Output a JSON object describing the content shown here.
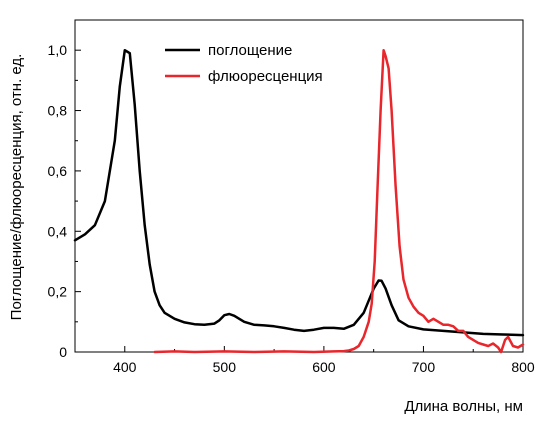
{
  "chart_data": {
    "type": "line",
    "xlabel": "Длина волны, нм",
    "ylabel": "Поглощение/флюоресценция, отн. ед.",
    "xlim": [
      350,
      800
    ],
    "ylim": [
      0,
      1.1
    ],
    "x_ticks": [
      400,
      500,
      600,
      700,
      800
    ],
    "y_ticks": [
      0,
      0.2,
      0.4,
      0.6,
      0.8,
      1.0
    ],
    "x_tick_labels": [
      "400",
      "500",
      "600",
      "700",
      "800"
    ],
    "y_tick_labels": [
      "0",
      "0,2",
      "0,4",
      "0,6",
      "0,8",
      "1,0"
    ],
    "grid": false,
    "legend_position": "top-center",
    "series": [
      {
        "name": "поглощение",
        "color": "#000000",
        "points": [
          [
            350,
            0.37
          ],
          [
            360,
            0.39
          ],
          [
            370,
            0.42
          ],
          [
            380,
            0.5
          ],
          [
            390,
            0.7
          ],
          [
            395,
            0.88
          ],
          [
            400,
            1.0
          ],
          [
            405,
            0.99
          ],
          [
            410,
            0.82
          ],
          [
            415,
            0.6
          ],
          [
            420,
            0.42
          ],
          [
            425,
            0.29
          ],
          [
            430,
            0.2
          ],
          [
            435,
            0.155
          ],
          [
            440,
            0.13
          ],
          [
            450,
            0.11
          ],
          [
            460,
            0.098
          ],
          [
            470,
            0.092
          ],
          [
            480,
            0.09
          ],
          [
            490,
            0.094
          ],
          [
            495,
            0.105
          ],
          [
            500,
            0.122
          ],
          [
            505,
            0.126
          ],
          [
            510,
            0.12
          ],
          [
            520,
            0.1
          ],
          [
            530,
            0.09
          ],
          [
            540,
            0.088
          ],
          [
            550,
            0.085
          ],
          [
            560,
            0.08
          ],
          [
            570,
            0.074
          ],
          [
            580,
            0.07
          ],
          [
            590,
            0.074
          ],
          [
            600,
            0.08
          ],
          [
            610,
            0.08
          ],
          [
            620,
            0.077
          ],
          [
            630,
            0.09
          ],
          [
            640,
            0.13
          ],
          [
            645,
            0.17
          ],
          [
            650,
            0.21
          ],
          [
            655,
            0.237
          ],
          [
            658,
            0.236
          ],
          [
            662,
            0.21
          ],
          [
            668,
            0.155
          ],
          [
            675,
            0.105
          ],
          [
            685,
            0.085
          ],
          [
            700,
            0.075
          ],
          [
            720,
            0.07
          ],
          [
            740,
            0.065
          ],
          [
            760,
            0.06
          ],
          [
            780,
            0.058
          ],
          [
            800,
            0.056
          ]
        ]
      },
      {
        "name": "флюоресценция",
        "color": "#e8262b",
        "points": [
          [
            430,
            0.0
          ],
          [
            450,
            0.002
          ],
          [
            470,
            0.0
          ],
          [
            500,
            0.002
          ],
          [
            530,
            0.0
          ],
          [
            560,
            0.002
          ],
          [
            590,
            0.0
          ],
          [
            610,
            0.002
          ],
          [
            620,
            0.003
          ],
          [
            625,
            0.005
          ],
          [
            630,
            0.01
          ],
          [
            635,
            0.02
          ],
          [
            640,
            0.05
          ],
          [
            645,
            0.1
          ],
          [
            648,
            0.16
          ],
          [
            651,
            0.3
          ],
          [
            654,
            0.55
          ],
          [
            657,
            0.8
          ],
          [
            660,
            1.0
          ],
          [
            662,
            0.98
          ],
          [
            665,
            0.94
          ],
          [
            668,
            0.8
          ],
          [
            672,
            0.55
          ],
          [
            676,
            0.35
          ],
          [
            680,
            0.24
          ],
          [
            685,
            0.18
          ],
          [
            690,
            0.15
          ],
          [
            695,
            0.13
          ],
          [
            700,
            0.12
          ],
          [
            705,
            0.1
          ],
          [
            710,
            0.11
          ],
          [
            715,
            0.1
          ],
          [
            720,
            0.09
          ],
          [
            725,
            0.09
          ],
          [
            730,
            0.085
          ],
          [
            735,
            0.07
          ],
          [
            740,
            0.07
          ],
          [
            745,
            0.05
          ],
          [
            750,
            0.04
          ],
          [
            755,
            0.03
          ],
          [
            760,
            0.025
          ],
          [
            765,
            0.02
          ],
          [
            770,
            0.028
          ],
          [
            775,
            0.015
          ],
          [
            778,
            0.0
          ],
          [
            782,
            0.04
          ],
          [
            785,
            0.05
          ],
          [
            790,
            0.02
          ],
          [
            795,
            0.015
          ],
          [
            800,
            0.025
          ]
        ]
      }
    ]
  }
}
